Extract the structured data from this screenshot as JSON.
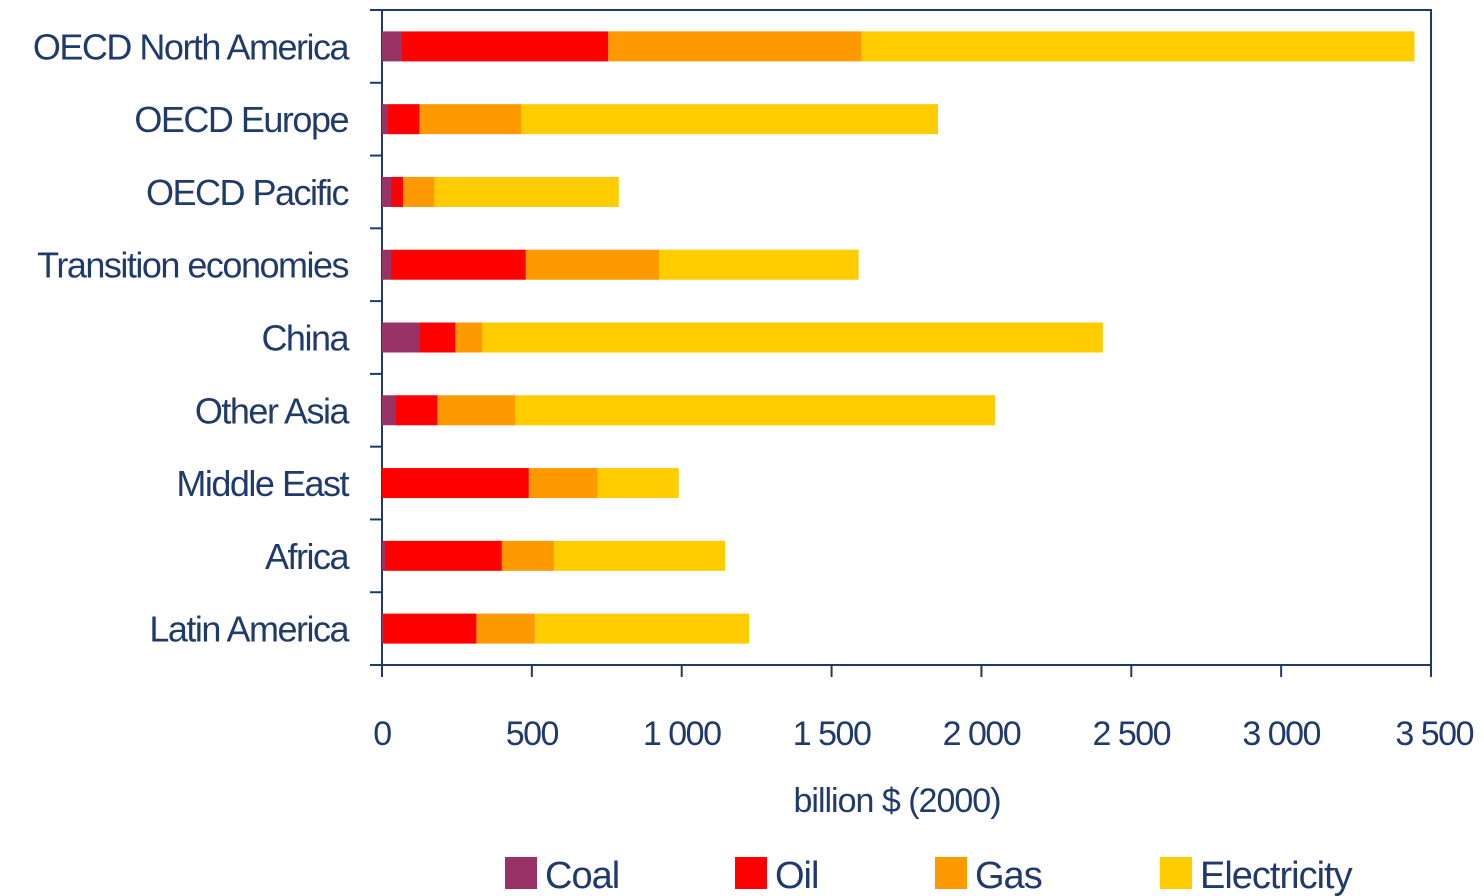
{
  "chart_data": {
    "type": "bar",
    "orientation": "horizontal",
    "stacked": true,
    "categories": [
      "OECD North America",
      "OECD Europe",
      "OECD Pacific",
      "Transition economies",
      "China",
      "Other Asia",
      "Middle East",
      "Africa",
      "Latin America"
    ],
    "series": [
      {
        "name": "Coal",
        "color": "#993366",
        "values": [
          65,
          20,
          30,
          30,
          125,
          45,
          0,
          10,
          5
        ]
      },
      {
        "name": "Oil",
        "color": "#ff0000",
        "values": [
          690,
          105,
          40,
          450,
          120,
          140,
          490,
          390,
          310
        ]
      },
      {
        "name": "Gas",
        "color": "#ff9900",
        "values": [
          845,
          340,
          105,
          445,
          90,
          260,
          230,
          175,
          195
        ]
      },
      {
        "name": "Electricity",
        "color": "#ffcc00",
        "values": [
          1845,
          1390,
          615,
          665,
          2070,
          1600,
          270,
          570,
          715
        ]
      }
    ],
    "xlabel": "billion $ (2000)",
    "ylabel": "",
    "title": "",
    "xlim": [
      0,
      3500
    ],
    "xticks": [
      0,
      500,
      1000,
      1500,
      2000,
      2500,
      3000,
      3500
    ],
    "xtick_labels": [
      "0",
      "500",
      "1 000",
      "1 500",
      "2 000",
      "2 500",
      "3 000",
      "3 500"
    ],
    "grid": false,
    "legend_position": "bottom",
    "axis_color": "#1f3a6b"
  }
}
